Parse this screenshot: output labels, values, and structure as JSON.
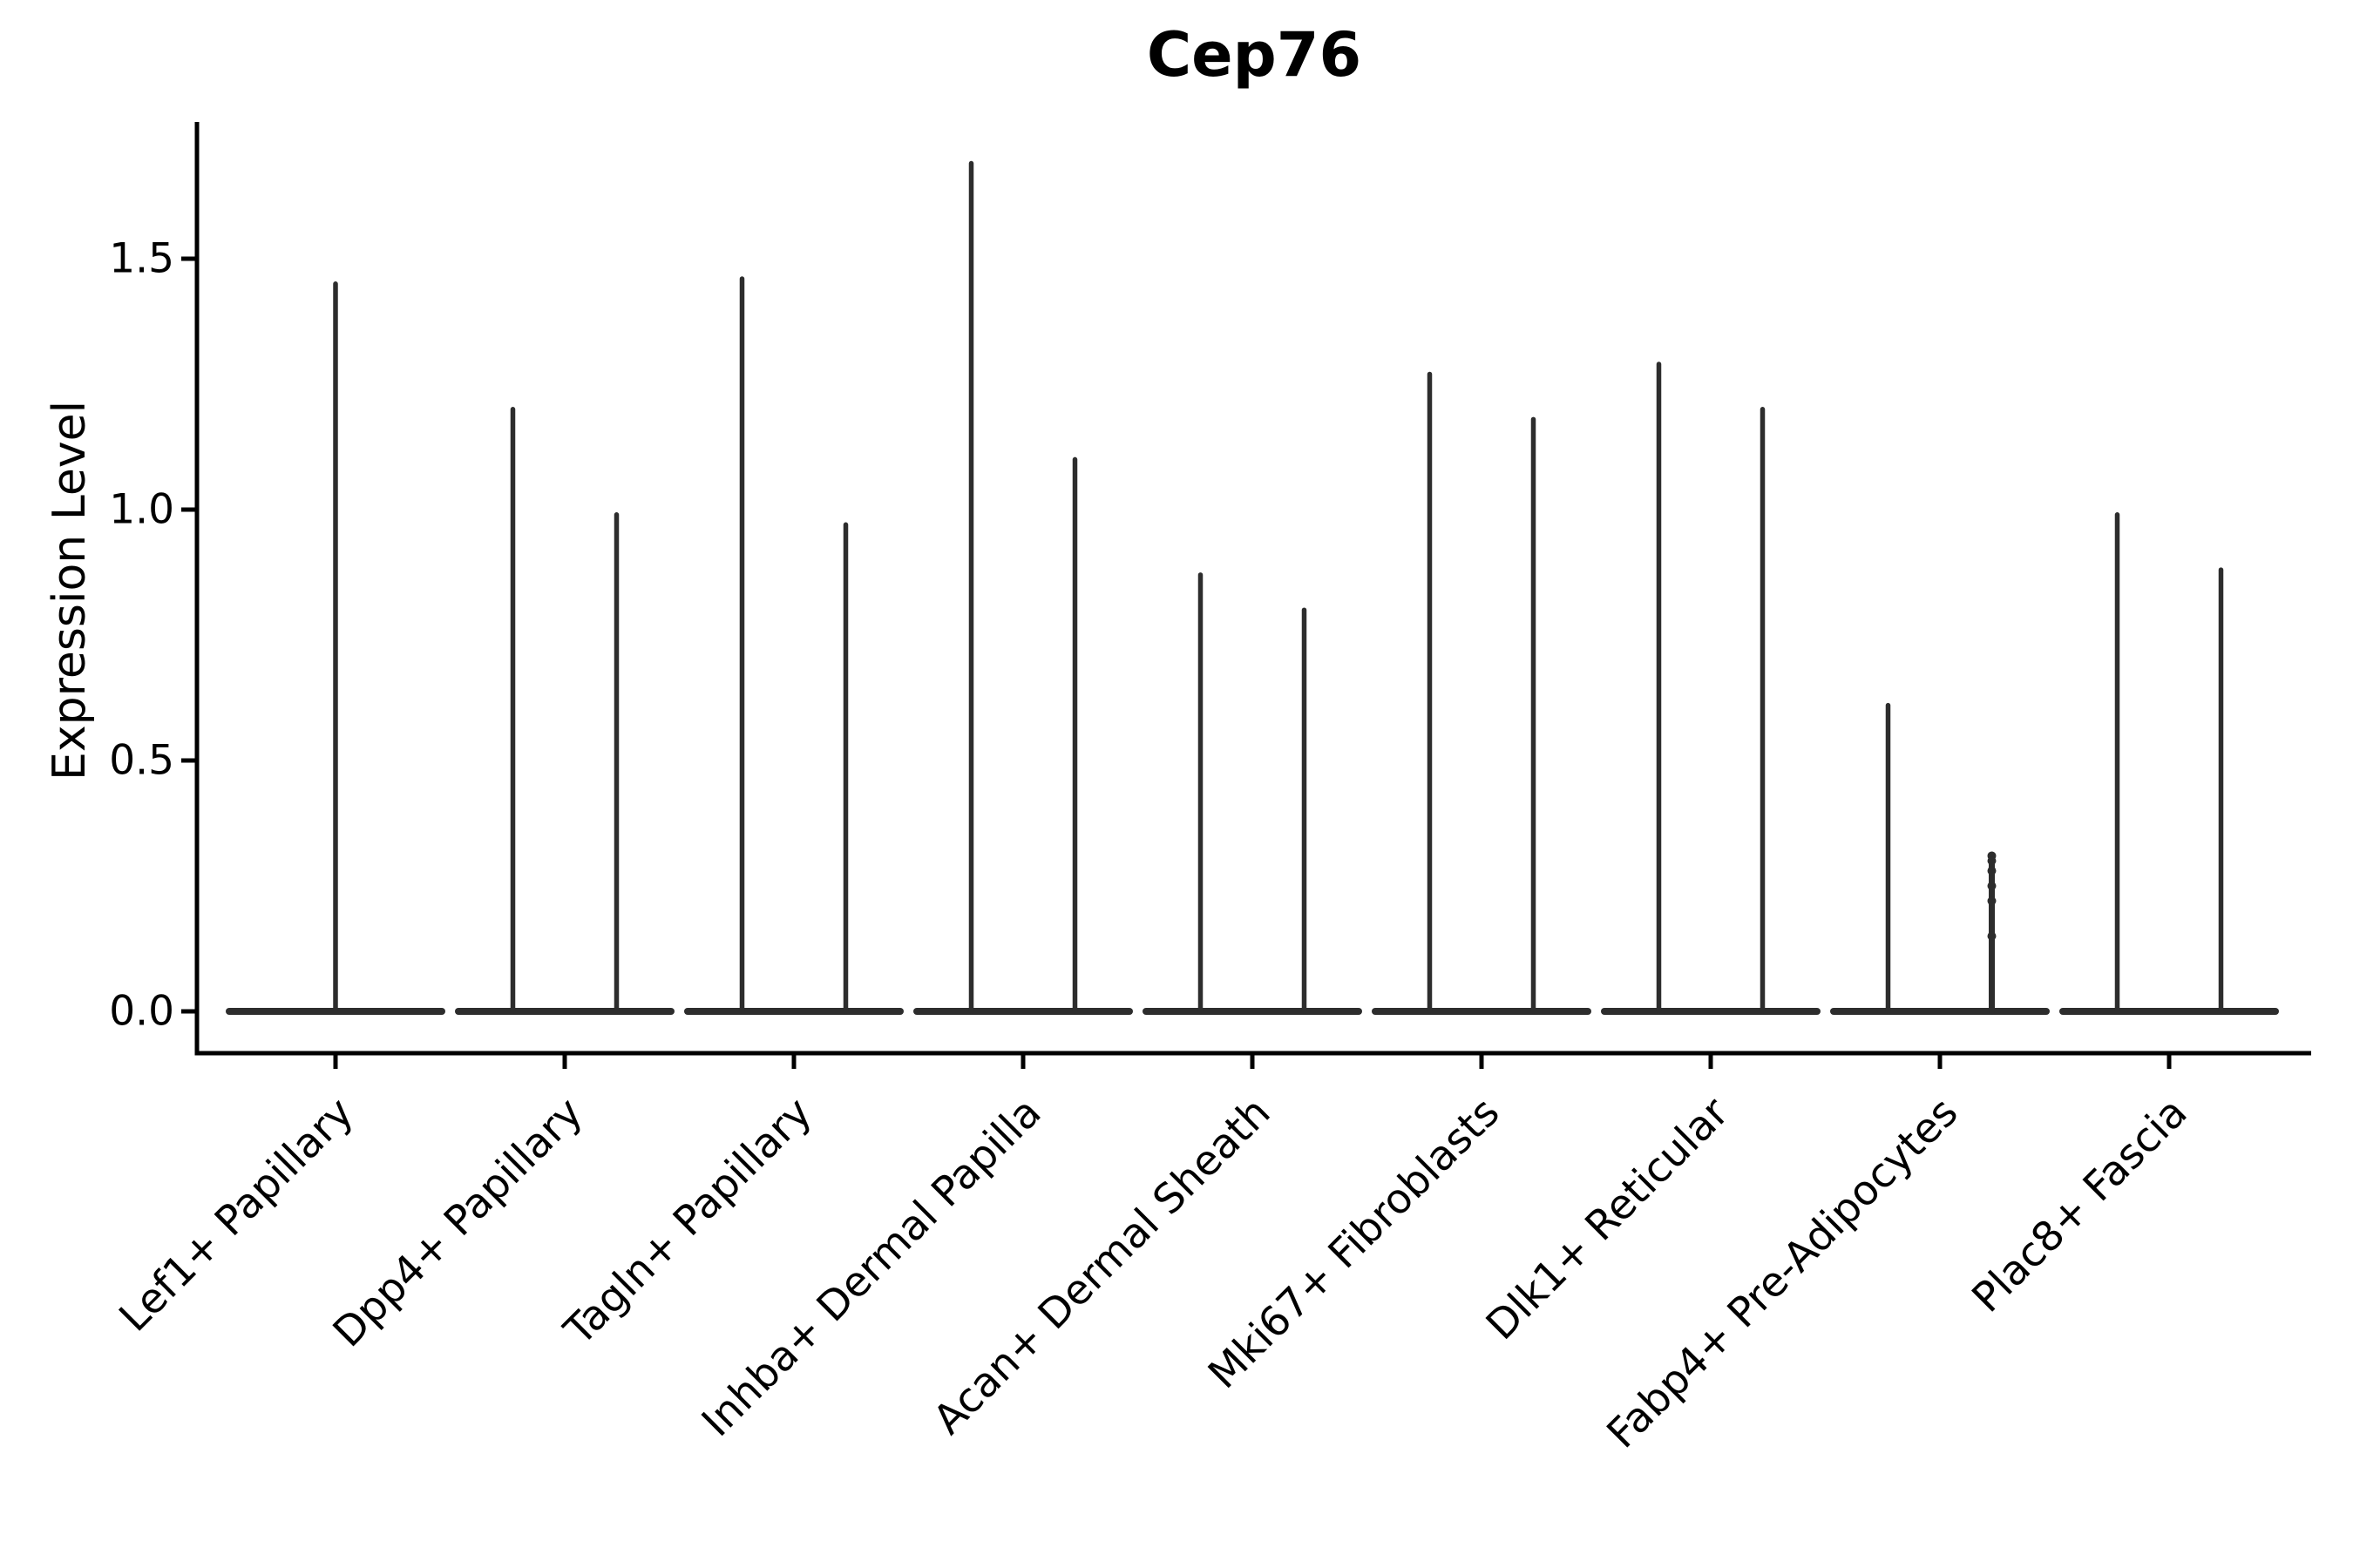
{
  "title": "Cep76",
  "ylabel": "Expression Level",
  "axis": {
    "ytick_labels": [
      "0.0",
      "0.5",
      "1.0",
      "1.5"
    ],
    "ytick_values": [
      0.0,
      0.5,
      1.0,
      1.5
    ]
  },
  "colors": {
    "violin": "#2d2d2d",
    "axis": "#000000",
    "text": "#000000"
  },
  "chart_data": {
    "type": "violin",
    "title": "Cep76",
    "xlabel": "",
    "ylabel": "Expression Level",
    "ylim": [
      0,
      1.77
    ],
    "yticks": [
      0.0,
      0.5,
      1.0,
      1.5
    ],
    "grid": false,
    "legend": false,
    "categories": [
      "Lef1+ Papillary",
      "Dpp4+ Papillary",
      "Tagln+ Papillary",
      "Inhba+ Dermal Papilla",
      "Acan+ Dermal Sheath",
      "Mki67+ Fibroblasts",
      "Dlk1+ Reticular",
      "Fabp4+ Pre-Adipocytes",
      "Plac8+ Fascia"
    ],
    "description": "Violin plot of Cep76 expression; bulk of cells at 0 (wide flat base), thin spikes show sparse expressing cells up to the max expression per violin.",
    "baseline_value": 0.0,
    "violins": [
      {
        "category": "Lef1+ Papillary",
        "position": "center",
        "max_expression": 1.45
      },
      {
        "category": "Dpp4+ Papillary",
        "position": "left",
        "max_expression": 1.2
      },
      {
        "category": "Dpp4+ Papillary",
        "position": "right",
        "max_expression": 0.99
      },
      {
        "category": "Tagln+ Papillary",
        "position": "left",
        "max_expression": 1.46
      },
      {
        "category": "Tagln+ Papillary",
        "position": "right",
        "max_expression": 0.97
      },
      {
        "category": "Inhba+ Dermal Papilla",
        "position": "left",
        "max_expression": 1.69
      },
      {
        "category": "Inhba+ Dermal Papilla",
        "position": "right",
        "max_expression": 1.1
      },
      {
        "category": "Acan+ Dermal Sheath",
        "position": "left",
        "max_expression": 0.87
      },
      {
        "category": "Acan+ Dermal Sheath",
        "position": "right",
        "max_expression": 0.8
      },
      {
        "category": "Mki67+ Fibroblasts",
        "position": "left",
        "max_expression": 1.27
      },
      {
        "category": "Mki67+ Fibroblasts",
        "position": "right",
        "max_expression": 1.18
      },
      {
        "category": "Dlk1+ Reticular",
        "position": "left",
        "max_expression": 1.29
      },
      {
        "category": "Dlk1+ Reticular",
        "position": "right",
        "max_expression": 1.2
      },
      {
        "category": "Fabp4+ Pre-Adipocytes",
        "position": "left",
        "max_expression": 0.61
      },
      {
        "category": "Fabp4+ Pre-Adipocytes",
        "position": "right",
        "max_expression": 0.31,
        "points": [
          0.31,
          0.3,
          0.28,
          0.25,
          0.22,
          0.15
        ]
      },
      {
        "category": "Plac8+ Fascia",
        "position": "left",
        "max_expression": 0.99
      },
      {
        "category": "Plac8+ Fascia",
        "position": "right",
        "max_expression": 0.88
      }
    ]
  }
}
